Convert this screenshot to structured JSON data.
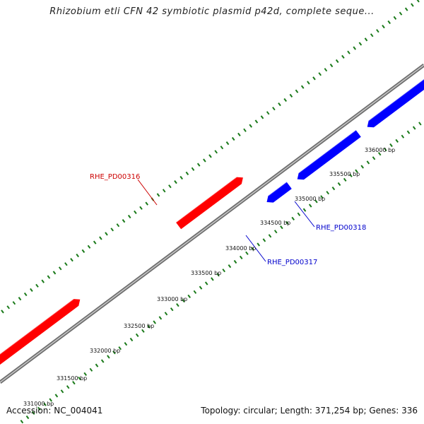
{
  "title": "Rhizobium etli CFN 42 symbiotic plasmid p42d, complete seque...",
  "footer": {
    "accession": "Accession: NC_004041",
    "info": "Topology: circular; Length: 371,254 bp; Genes: 336"
  },
  "colors": {
    "forward_gene": "#ff0000",
    "forward_gene_faded": "#f08080",
    "reverse_gene": "#0000ff",
    "backbone": "#8c8c8c",
    "tick": "#1a7a1a",
    "forward_label": "#cc0000",
    "reverse_label": "#0000cc"
  },
  "scale_labels": [
    "331000 bp",
    "331500 bp",
    "332000 bp",
    "332500 bp",
    "333000 bp",
    "333500 bp",
    "334000 bp",
    "334500 bp",
    "335000 bp",
    "335500 bp",
    "336000 bp"
  ],
  "genes": [
    {
      "id": "gene-faded",
      "label": "",
      "strand": "forward",
      "faded": true,
      "start_bp": 330400,
      "end_bp": 331950
    },
    {
      "id": "gene-forward-left",
      "label": "",
      "strand": "forward",
      "faded": false,
      "start_bp": 330400,
      "end_bp": 332000
    },
    {
      "id": "gene-rhe-pd00316",
      "label": "RHE_PD00316",
      "strand": "forward",
      "faded": false,
      "start_bp": 333450,
      "end_bp": 334400
    },
    {
      "id": "gene-rhe-pd00317",
      "label": "RHE_PD00317",
      "strand": "reverse",
      "faded": false,
      "start_bp": 334450,
      "end_bp": 334780
    },
    {
      "id": "gene-rhe-pd00318",
      "label": "RHE_PD00318",
      "strand": "reverse",
      "faded": false,
      "start_bp": 334900,
      "end_bp": 335800
    },
    {
      "id": "gene-reverse-right",
      "label": "",
      "strand": "reverse",
      "faded": false,
      "start_bp": 335930,
      "end_bp": 337000
    }
  ]
}
